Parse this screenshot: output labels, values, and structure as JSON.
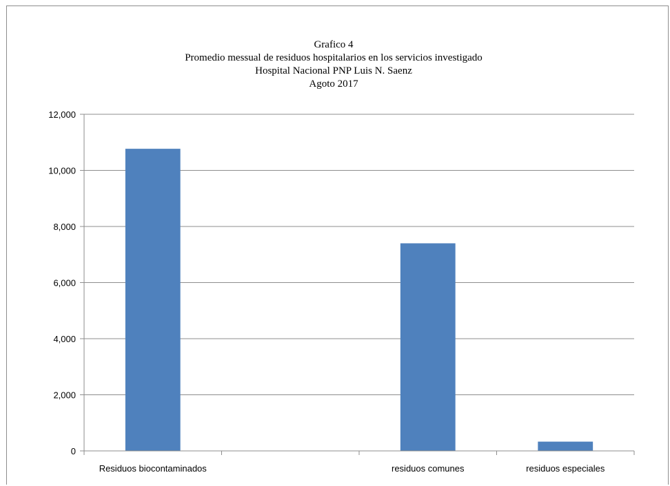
{
  "chart_data": {
    "type": "bar",
    "title_lines": [
      "Grafico 4",
      "Promedio messual de residuos hospitalarios  en los servicios investigado",
      "Hospital Nacional PNP Luis N. Saenz",
      "Agoto 2017"
    ],
    "categories": [
      "Residuos biocontaminados",
      "",
      "residuos comunes",
      "residuos especiales"
    ],
    "values": [
      10770,
      0,
      7400,
      330
    ],
    "yticks": [
      "0",
      "2,000",
      "4,000",
      "6,000",
      "8,000",
      "10,000",
      "12,000"
    ],
    "ylim": [
      0,
      12000
    ],
    "grid": true,
    "legend": "none",
    "bar_color": "#4f81bd"
  }
}
